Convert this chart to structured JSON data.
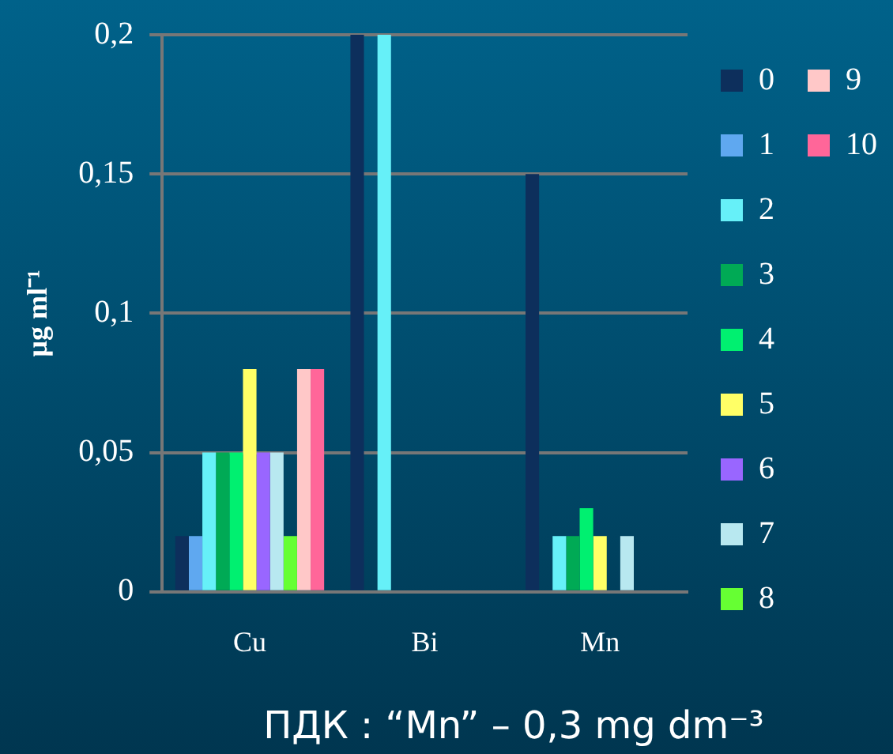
{
  "chart_data": {
    "type": "bar",
    "ylabel": "μg ml⁻¹",
    "categories": [
      "Cu",
      "Bi",
      "Mn"
    ],
    "series": [
      {
        "name": "0",
        "color": "#0d2f5c",
        "values": [
          0.02,
          0.2,
          0.15
        ]
      },
      {
        "name": "1",
        "color": "#5fa8f0",
        "values": [
          0.02,
          0,
          0
        ]
      },
      {
        "name": "2",
        "color": "#66f0f8",
        "values": [
          0.05,
          0.2,
          0.02
        ]
      },
      {
        "name": "3",
        "color": "#00aa55",
        "values": [
          0.05,
          0,
          0.02
        ]
      },
      {
        "name": "4",
        "color": "#00f070",
        "values": [
          0.05,
          0,
          0.03
        ]
      },
      {
        "name": "5",
        "color": "#ffff66",
        "values": [
          0.08,
          0,
          0.02
        ]
      },
      {
        "name": "6",
        "color": "#9966ff",
        "values": [
          0.05,
          0,
          0
        ]
      },
      {
        "name": "7",
        "color": "#b8e8f0",
        "values": [
          0.05,
          0,
          0.02
        ]
      },
      {
        "name": "8",
        "color": "#66ff33",
        "values": [
          0.02,
          0,
          0
        ]
      },
      {
        "name": "9",
        "color": "#ffc8c8",
        "values": [
          0.08,
          0,
          0
        ]
      },
      {
        "name": "10",
        "color": "#ff6699",
        "values": [
          0.08,
          0,
          0
        ]
      }
    ],
    "ylim": [
      0,
      0.2
    ],
    "yticks": [
      {
        "value": 0,
        "label": "0"
      },
      {
        "value": 0.05,
        "label": "0,05"
      },
      {
        "value": 0.1,
        "label": "0,1"
      },
      {
        "value": 0.15,
        "label": "0,15"
      },
      {
        "value": 0.2,
        "label": "0,2"
      }
    ],
    "grid": "y",
    "legend": "right",
    "annotations": [
      "ПДК : “Mn” – 0,3 mg dm⁻³"
    ]
  }
}
